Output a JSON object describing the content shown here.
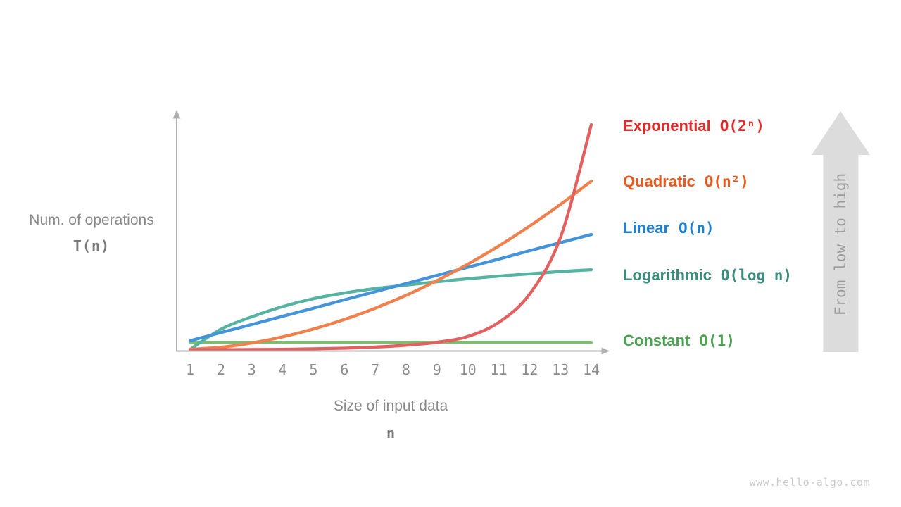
{
  "page": {
    "watermark": "www.hello-algo.com"
  },
  "chart_data": {
    "type": "line",
    "x_axis": {
      "label_line1": "Size of input data",
      "label_line2": "n",
      "ticks": [
        "1",
        "2",
        "3",
        "4",
        "5",
        "6",
        "7",
        "8",
        "9",
        "10",
        "11",
        "12",
        "13",
        "14"
      ],
      "range": [
        1,
        14
      ]
    },
    "y_axis": {
      "label_line1": "Num. of operations",
      "label_line2": "T(n)"
    },
    "annotation_arrow": {
      "label": "From low to high",
      "fill_color": "#dcdcdc",
      "text_color": "#9b9b9b"
    },
    "axis_color": "#b0b0b0",
    "tick_color": "#8d8d8d",
    "grid": false,
    "legend_position": "right",
    "series": [
      {
        "name": "Exponential",
        "notation": "O(2ⁿ)",
        "label_color": "#e12a2a",
        "curve_color": "#e2605f",
        "values": [
          0.4,
          0.45,
          0.5,
          0.6,
          0.8,
          1.1,
          1.6,
          2.4,
          3.7,
          6.3,
          12.5,
          25,
          50,
          100
        ]
      },
      {
        "name": "Quadratic",
        "notation": "O(n²)",
        "label_color": "#ea5a1e",
        "curve_color": "#f0814d",
        "values": [
          0.6,
          1.5,
          3.4,
          6.1,
          9.6,
          13.8,
          18.8,
          24.5,
          31,
          38.3,
          46.3,
          55.1,
          64.7,
          75
        ]
      },
      {
        "name": "Linear",
        "notation": "O(n)",
        "label_color": "#2080d2",
        "curve_color": "#4494dc",
        "values": [
          4.4,
          8,
          11.6,
          15.2,
          18.8,
          22.5,
          26.1,
          29.7,
          33.3,
          36.9,
          40.5,
          44.2,
          47.8,
          51.4
        ]
      },
      {
        "name": "Logarithmic",
        "notation": "O(log n)",
        "label_color": "#3b8c7e",
        "curve_color": "#55b3a1",
        "values": [
          0.5,
          9.5,
          15,
          19.5,
          23,
          25.5,
          27.5,
          29,
          30.5,
          31.8,
          33,
          34,
          35,
          35.8
        ]
      },
      {
        "name": "Constant",
        "notation": "O(1)",
        "label_color": "#4ba352",
        "curve_color": "#7fbe72",
        "values": [
          3.7,
          3.7,
          3.7,
          3.7,
          3.7,
          3.7,
          3.7,
          3.7,
          3.7,
          3.7,
          3.7,
          3.7,
          3.7,
          3.7
        ]
      }
    ]
  }
}
